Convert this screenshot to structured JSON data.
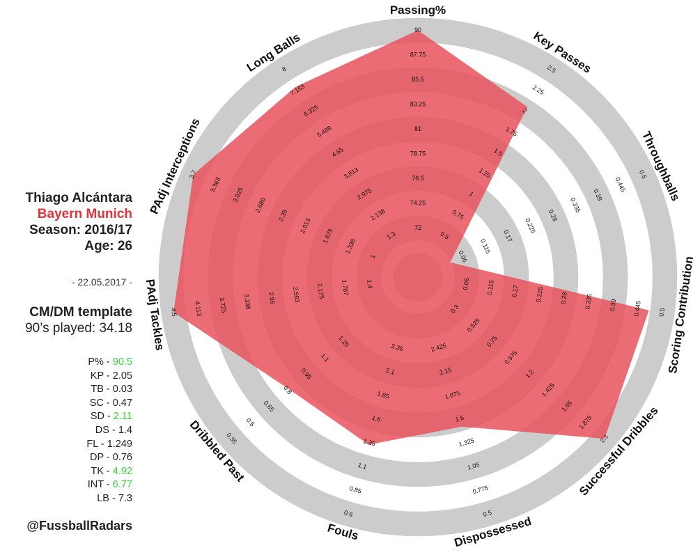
{
  "player": {
    "name": "Thiago Alcántara",
    "team": "Bayern Munich",
    "season": "Season: 2016/17",
    "age": "Age: 26",
    "date": "- 22.05.2017 -",
    "template": "CM/DM template",
    "played": "90’s played: 34.18",
    "handle": "@FussballRadars"
  },
  "stats": [
    {
      "label": "P% - ",
      "value": "90.5",
      "highlight": true
    },
    {
      "label": "KP - ",
      "value": "2.05",
      "highlight": false
    },
    {
      "label": "TB - ",
      "value": "0.03",
      "highlight": false
    },
    {
      "label": "SC - ",
      "value": "0.47",
      "highlight": false
    },
    {
      "label": "SD - ",
      "value": "2.11",
      "highlight": true
    },
    {
      "label": "DS - ",
      "value": "1.4",
      "highlight": false
    },
    {
      "label": "FL - ",
      "value": "1.249",
      "highlight": false
    },
    {
      "label": "DP - ",
      "value": "0.76",
      "highlight": false
    },
    {
      "label": "TK - ",
      "value": "4.92",
      "highlight": true
    },
    {
      "label": "INT - ",
      "value": "6.77",
      "highlight": true
    },
    {
      "label": "LB - ",
      "value": "7.3",
      "highlight": false
    }
  ],
  "colors": {
    "polygon": "#e8525c",
    "ring_gray": "#cccccc",
    "ring_white": "#ffffff",
    "highlight": "#3cd03c",
    "team": "#e0343d"
  },
  "chart_data": {
    "type": "radar",
    "rings": 10,
    "axes": [
      {
        "name": "Passing%",
        "ticks": [
          "72",
          "74.25",
          "76.5",
          "78.75",
          "81",
          "83.25",
          "85.5",
          "87.75",
          "90"
        ],
        "value": 90.5,
        "min": 69.75,
        "max": 90
      },
      {
        "name": "Key Passes",
        "ticks": [
          "0.5",
          "0.75",
          "1",
          "1.25",
          "1.5",
          "1.75",
          "2",
          "2.25",
          "2.5"
        ],
        "value": 2.05,
        "min": 0.25,
        "max": 2.5
      },
      {
        "name": "Throughballs",
        "ticks": [
          "0.06",
          "0.115",
          "0.17",
          "0.225",
          "0.28",
          "0.335",
          "0.39",
          "0.445",
          "0.5"
        ],
        "value": 0.03,
        "min": 0.005,
        "max": 0.5
      },
      {
        "name": "Scoring Contribution",
        "ticks": [
          "0.06",
          "0.115",
          "0.17",
          "0.225",
          "0.28",
          "0.335",
          "0.39",
          "0.445",
          "0.5"
        ],
        "value": 0.47,
        "min": 0.005,
        "max": 0.5
      },
      {
        "name": "Successful Dribbles",
        "ticks": [
          "0.3",
          "0.525",
          "0.75",
          "0.975",
          "1.2",
          "1.425",
          "1.65",
          "1.875",
          "2.1"
        ],
        "value": 2.11,
        "min": 0.075,
        "max": 2.1
      },
      {
        "name": "Dispossessed",
        "ticks": [
          "2.425",
          "2.15",
          "1.875",
          "1.6",
          "1.325",
          "1.05",
          "0.775",
          "0.5"
        ],
        "value": 1.4,
        "min": 2.7,
        "max": 0.5
      },
      {
        "name": "Fouls",
        "ticks": [
          "2.35",
          "2.1",
          "1.85",
          "1.6",
          "1.35",
          "1.1",
          "0.85",
          "0.6"
        ],
        "value": 1.249,
        "min": 2.6,
        "max": 0.6
      },
      {
        "name": "Dribbled Past",
        "ticks": [
          "1.25",
          "1.1",
          "0.95",
          "0.8",
          "0.65",
          "0.5",
          "0.35"
        ],
        "value": 0.76,
        "min": 1.55,
        "max": 0.35
      },
      {
        "name": "PAdj Tackles",
        "ticks": [
          "1.4",
          "1.787",
          "2.175",
          "2.563",
          "2.95",
          "3.338",
          "3.725",
          "4.113",
          "4.5"
        ],
        "value": 4.92,
        "min": 1.013,
        "max": 4.5
      },
      {
        "name": "PAdj Interceptions",
        "ticks": [
          "1",
          "1.338",
          "1.675",
          "2.013",
          "2.35",
          "2.688",
          "3.025",
          "3.363",
          "3.7"
        ],
        "value": 6.77,
        "min": 0.663,
        "max": 3.7
      },
      {
        "name": "Long Balls",
        "ticks": [
          "1.3",
          "2.138",
          "2.975",
          "3.813",
          "4.65",
          "5.488",
          "6.325",
          "7.163",
          "8"
        ],
        "value": 7.3,
        "min": 0.463,
        "max": 8
      }
    ]
  }
}
